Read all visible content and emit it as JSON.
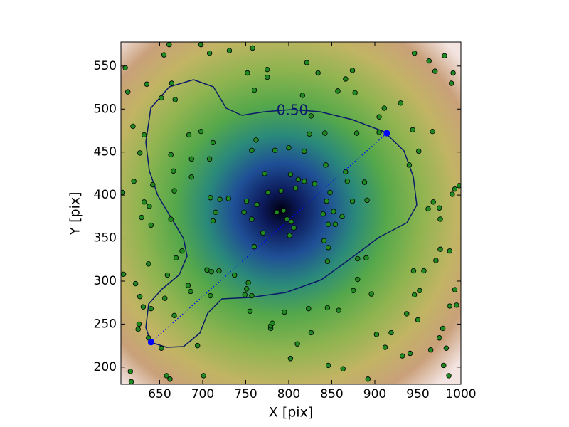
{
  "chart_data": {
    "type": "scatter",
    "xlabel": "X [pix]",
    "ylabel": "Y [pix]",
    "xlim": [
      605,
      1000
    ],
    "ylim": [
      180,
      578
    ],
    "xticks": [
      650,
      700,
      750,
      800,
      850,
      900,
      950,
      1000
    ],
    "yticks": [
      200,
      250,
      300,
      350,
      400,
      450,
      500,
      550
    ],
    "contour_label": "0.50",
    "point_color": "#1f8a1f",
    "line": {
      "x": [
        640,
        914
      ],
      "y": [
        229,
        472
      ],
      "color": "#0000ff"
    },
    "x": [
      610,
      655,
      661,
      698,
      708,
      731,
      758,
      613,
      635,
      652,
      664,
      668,
      619,
      632,
      627,
      663,
      684,
      698,
      708,
      712,
      687,
      666,
      620,
      642,
      667,
      607,
      632,
      638,
      629,
      640,
      663,
      687,
      709,
      720,
      715,
      730,
      712,
      669,
      676,
      705,
      608,
      622,
      637,
      627,
      631,
      640,
      656,
      683,
      686,
      626,
      625,
      637,
      652,
      667,
      694,
      616,
      617,
      658,
      662,
      701,
      737,
      751,
      755,
      779,
      795,
      802,
      810,
      823,
      845,
      858,
      826,
      846,
      863,
      892,
      902,
      912,
      919,
      932,
      941,
      937,
      950,
      965,
      975,
      983,
      986,
      980,
      979,
      987,
      995,
      993,
      976,
      987,
      945,
      957,
      952,
      946,
      971,
      976,
      962,
      968,
      975,
      990,
      998,
      993,
      940,
      951,
      967,
      944,
      930,
      911,
      905,
      905,
      877,
      866,
      874,
      857,
      834,
      821,
      946,
      963,
      970,
      981,
      991,
      989,
      752,
      775,
      775,
      760,
      762,
      757,
      772,
      776,
      763,
      751,
      748,
      757,
      770,
      760,
      786,
      794,
      798,
      803,
      801,
      806,
      791,
      802,
      811,
      808,
      818,
      830,
      848,
      844,
      840,
      852,
      846,
      841,
      846,
      862,
      854,
      868,
      874,
      891,
      888,
      843,
      818,
      824,
      800,
      784,
      816,
      842,
      826,
      879,
      866,
      880,
      896,
      875,
      880,
      845,
      890,
      757,
      753,
      779,
      781,
      749,
      709,
      719,
      710,
      659
    ],
    "y": [
      548,
      563,
      575,
      575,
      565,
      568,
      571,
      520,
      529,
      513,
      530,
      511,
      480,
      470,
      449,
      447,
      470,
      474,
      442,
      461,
      442,
      428,
      416,
      412,
      405,
      403,
      392,
      387,
      374,
      365,
      372,
      421,
      397,
      395,
      380,
      396,
      370,
      327,
      335,
      313,
      308,
      297,
      320,
      282,
      270,
      268,
      280,
      295,
      288,
      250,
      244,
      234,
      222,
      260,
      225,
      195,
      183,
      190,
      186,
      190,
      307,
      291,
      265,
      245,
      264,
      210,
      227,
      268,
      269,
      266,
      240,
      202,
      198,
      186,
      238,
      223,
      240,
      213,
      216,
      262,
      255,
      220,
      234,
      222,
      190,
      202,
      245,
      271,
      272,
      290,
      337,
      335,
      312,
      312,
      289,
      284,
      324,
      372,
      384,
      392,
      385,
      401,
      411,
      407,
      435,
      451,
      474,
      476,
      507,
      501,
      491,
      473,
      519,
      535,
      545,
      521,
      542,
      554,
      565,
      556,
      544,
      562,
      542,
      530,
      542,
      546,
      537,
      522,
      464,
      452,
      425,
      403,
      389,
      393,
      380,
      372,
      356,
      340,
      380,
      382,
      372,
      369,
      353,
      362,
      405,
      424,
      418,
      408,
      416,
      413,
      403,
      393,
      378,
      381,
      366,
      347,
      339,
      375,
      366,
      416,
      393,
      394,
      415,
      435,
      451,
      471,
      455,
      452,
      516,
      472,
      492,
      472,
      427,
      302,
      285,
      289,
      326,
      323,
      327,
      283,
      298,
      248,
      251,
      284,
      283,
      312,
      311,
      307
    ]
  }
}
